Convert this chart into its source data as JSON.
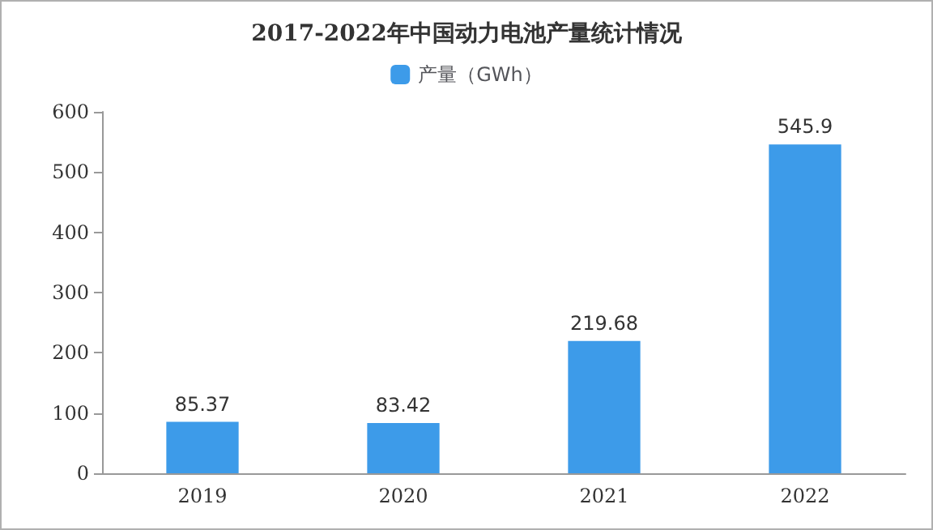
{
  "chart_data": {
    "type": "bar",
    "title": "2017-2022年中国动力电池产量统计情况",
    "categories": [
      "2019",
      "2020",
      "2021",
      "2022"
    ],
    "series": [
      {
        "name": "产量（GWh）",
        "color": "#3d9be9",
        "values": [
          85.37,
          83.42,
          219.68,
          545.9
        ]
      }
    ],
    "ylim": [
      0,
      600
    ],
    "yticks": [
      0,
      100,
      200,
      300,
      400,
      500,
      600
    ],
    "data_labels": true,
    "grid": false,
    "legend": "top"
  }
}
